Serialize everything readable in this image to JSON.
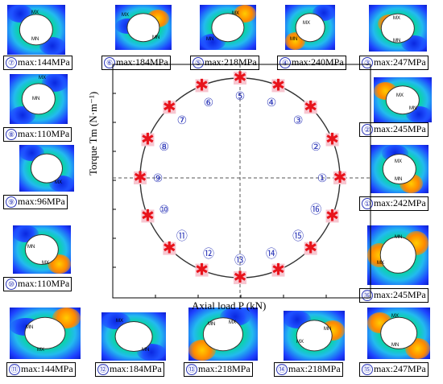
{
  "axes": {
    "x_label": "Axial load P (kN)",
    "y_label": "Torque Tm (N·m⁻¹)"
  },
  "markers": [
    {
      "id": "1",
      "label": "①"
    },
    {
      "id": "2",
      "label": "②"
    },
    {
      "id": "3",
      "label": "③"
    },
    {
      "id": "4",
      "label": "④"
    },
    {
      "id": "5",
      "label": "⑤"
    },
    {
      "id": "6",
      "label": "⑥"
    },
    {
      "id": "7",
      "label": "⑦"
    },
    {
      "id": "8",
      "label": "⑧"
    },
    {
      "id": "9",
      "label": "⑨"
    },
    {
      "id": "10",
      "label": "⑩"
    },
    {
      "id": "11",
      "label": "⑪"
    },
    {
      "id": "12",
      "label": "⑫"
    },
    {
      "id": "13",
      "label": "⑬"
    },
    {
      "id": "14",
      "label": "⑭"
    },
    {
      "id": "15",
      "label": "⑮"
    },
    {
      "id": "16",
      "label": "⑯"
    }
  ],
  "panels": [
    {
      "num": "⑦",
      "text": "max:144MPa",
      "tags": [
        "MX",
        "MN"
      ]
    },
    {
      "num": "⑥",
      "text": "max:184MPa",
      "tags": [
        "MX",
        "MN"
      ]
    },
    {
      "num": "⑤",
      "text": "max:218MPa",
      "tags": [
        "MX",
        "MN"
      ]
    },
    {
      "num": "④",
      "text": "max:240MPa",
      "tags": [
        "MX",
        "MN"
      ]
    },
    {
      "num": "③",
      "text": "max:247MPa",
      "tags": [
        "MX",
        "MN"
      ]
    },
    {
      "num": "⑧",
      "text": "max:110MPa",
      "tags": [
        "MX",
        "MN"
      ]
    },
    {
      "num": "②",
      "text": "max:245MPa",
      "tags": [
        "MX",
        "MN"
      ]
    },
    {
      "num": "⑨",
      "text": "max:96MPa",
      "tags": [
        "MX",
        ""
      ]
    },
    {
      "num": "①",
      "text": "max:242MPa",
      "tags": [
        "MX",
        "MN"
      ]
    },
    {
      "num": "⑩",
      "text": "max:110MPa",
      "tags": [
        "MN",
        "MX"
      ]
    },
    {
      "num": "⑯",
      "text": "max:245MPa",
      "tags": [
        "MX",
        "MN"
      ]
    },
    {
      "num": "⑪",
      "text": "max:144MPa",
      "tags": [
        "MN",
        "MX"
      ]
    },
    {
      "num": "⑫",
      "text": "max:184MPa",
      "tags": [
        "MX",
        "MN"
      ]
    },
    {
      "num": "⑬",
      "text": "max:218MPa",
      "tags": [
        "MX",
        "MN"
      ]
    },
    {
      "num": "⑭",
      "text": "max:218MPa",
      "tags": [
        "MX",
        "MN"
      ]
    },
    {
      "num": "⑮",
      "text": "max:247MPa",
      "tags": [
        "MX",
        "MN"
      ]
    }
  ],
  "colors": {
    "marker": "#e8131b",
    "marker_halo": "#f7c6d0",
    "label_circle": "#2a35b8",
    "circle_line": "#333333"
  }
}
